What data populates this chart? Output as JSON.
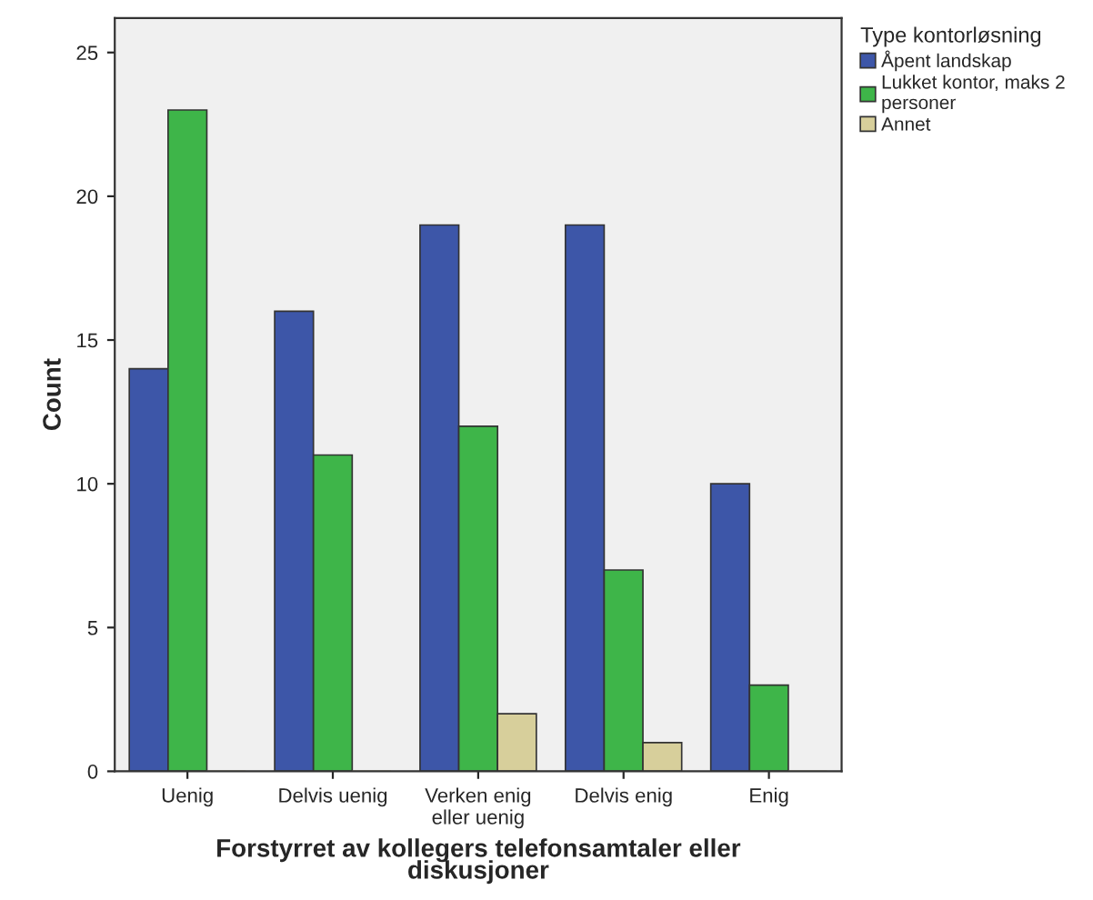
{
  "chart_data": {
    "type": "bar",
    "categories": [
      "Uenig",
      "Delvis uenig",
      "Verken enig\neller uenig",
      "Delvis enig",
      "Enig"
    ],
    "series": [
      {
        "name": "Åpent landskap",
        "color": "#3d56a8",
        "values": [
          14,
          16,
          19,
          19,
          10
        ]
      },
      {
        "name": "Lukket kontor, maks 2\npersoner",
        "color": "#3eb549",
        "values": [
          23,
          11,
          12,
          7,
          3
        ]
      },
      {
        "name": "Annet",
        "color": "#d7cf9b",
        "values": [
          0,
          0,
          2,
          1,
          0
        ]
      }
    ],
    "xlabel": "Forstyrret av kollegers telefonsamtaler eller\ndiskusjoner",
    "ylabel": "Count",
    "legend_title": "Type kontorløsning",
    "legend": "top right",
    "ylim": [
      0,
      26.2
    ],
    "yticks": [
      0,
      5,
      10,
      15,
      20,
      25
    ],
    "grid": false
  }
}
